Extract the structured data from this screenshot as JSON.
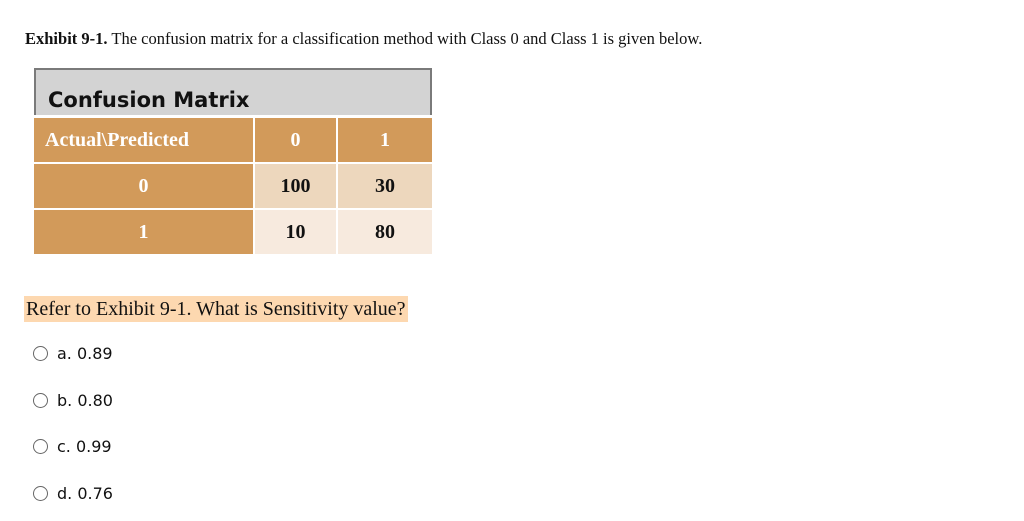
{
  "exhibit": {
    "label": "Exhibit 9-1.",
    "text": "The confusion matrix for a classification method with Class 0 and Class 1 is given below."
  },
  "matrix": {
    "title": "Confusion Matrix",
    "corner": "Actual\\Predicted",
    "columns": [
      "0",
      "1"
    ],
    "rows": [
      {
        "label": "0",
        "values": [
          "100",
          "30"
        ]
      },
      {
        "label": "1",
        "values": [
          "10",
          "80"
        ]
      }
    ],
    "colors": {
      "header": "#d29a5a",
      "row0": "#edd7bd",
      "row1": "#f7eade",
      "title_bg": "#d3d3d3"
    }
  },
  "question": {
    "text": "Refer to Exhibit 9-1. What is Sensitivity value?",
    "highlight": "#fdd8b0"
  },
  "options": [
    "a. 0.89",
    "b. 0.80",
    "c. 0.99",
    "d. 0.76"
  ]
}
